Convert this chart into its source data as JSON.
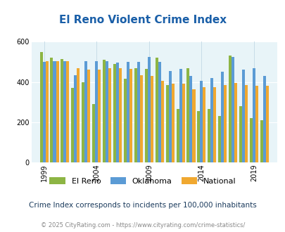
{
  "title": "El Reno Violent Crime Index",
  "title_color": "#1a5fa8",
  "years": [
    1999,
    2000,
    2001,
    2002,
    2003,
    2004,
    2005,
    2006,
    2007,
    2008,
    2009,
    2010,
    2011,
    2012,
    2013,
    2014,
    2015,
    2016,
    2017,
    2018,
    2019,
    2020
  ],
  "el_reno": [
    550,
    520,
    515,
    370,
    400,
    290,
    510,
    490,
    415,
    470,
    465,
    520,
    385,
    265,
    470,
    255,
    265,
    230,
    530,
    280,
    220,
    210
  ],
  "oklahoma": [
    500,
    505,
    505,
    435,
    505,
    505,
    505,
    495,
    500,
    500,
    525,
    500,
    455,
    465,
    430,
    405,
    420,
    450,
    525,
    460,
    470,
    430
  ],
  "national": [
    505,
    505,
    505,
    470,
    460,
    460,
    470,
    470,
    465,
    435,
    430,
    405,
    390,
    390,
    365,
    375,
    375,
    385,
    395,
    385,
    380,
    380
  ],
  "el_reno_color": "#8db544",
  "oklahoma_color": "#5b9bd5",
  "national_color": "#f0a830",
  "bg_color": "#e8f4f8",
  "ylim": [
    0,
    600
  ],
  "yticks": [
    0,
    200,
    400,
    600
  ],
  "xtick_labels": [
    "1999",
    "2004",
    "2009",
    "2014",
    "2019"
  ],
  "xtick_positions": [
    1999,
    2004,
    2009,
    2014,
    2019
  ],
  "subtitle": "Crime Index corresponds to incidents per 100,000 inhabitants",
  "footer": "© 2025 CityRating.com - https://www.cityrating.com/crime-statistics/",
  "title_fontsize": 11,
  "subtitle_color": "#1a3a5c",
  "footer_color": "#888888",
  "legend_labels": [
    "El Reno",
    "Oklahoma",
    "National"
  ],
  "bar_width": 0.27
}
